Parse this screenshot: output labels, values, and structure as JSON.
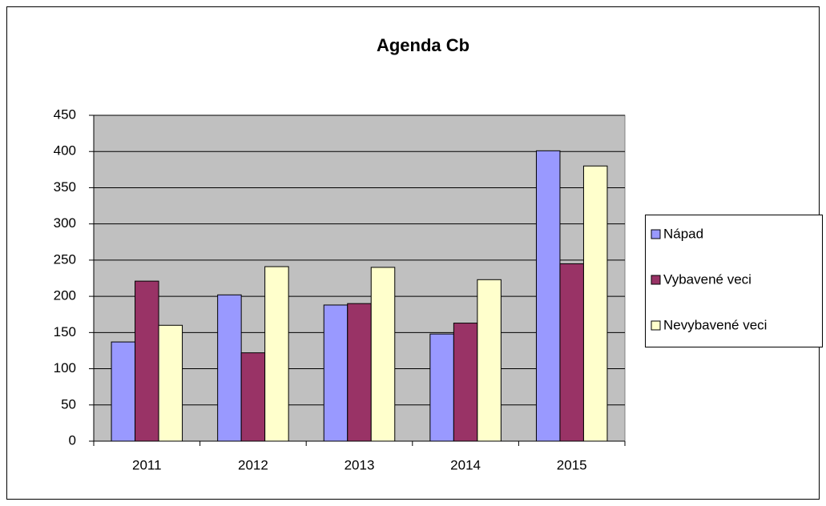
{
  "chart_data": {
    "type": "bar",
    "title": "Agenda Cb",
    "categories": [
      "2011",
      "2012",
      "2013",
      "2014",
      "2015"
    ],
    "series": [
      {
        "name": "Nápad",
        "color": "#9999ff",
        "values": [
          137,
          202,
          188,
          148,
          401
        ]
      },
      {
        "name": "Vybavené veci",
        "color": "#993366",
        "values": [
          221,
          122,
          190,
          163,
          245
        ]
      },
      {
        "name": "Nevybavené veci",
        "color": "#ffffcc",
        "values": [
          160,
          241,
          240,
          223,
          380
        ]
      }
    ],
    "ylim": [
      0,
      450
    ],
    "yticks": [
      0,
      50,
      100,
      150,
      200,
      250,
      300,
      350,
      400,
      450
    ],
    "grid": true,
    "legend": "right",
    "plot_background": "#c0c0c0"
  }
}
